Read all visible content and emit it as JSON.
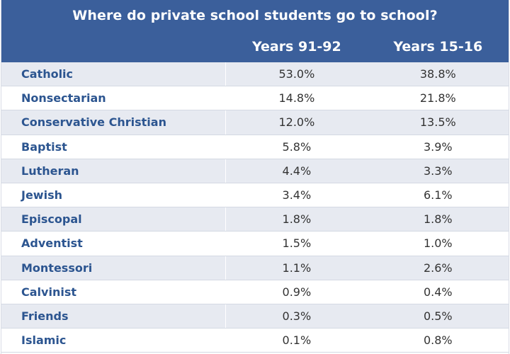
{
  "chart_data": {
    "type": "table",
    "title": "Where do private school students go to school?",
    "columns": [
      "Years 91-92",
      "Years 15-16"
    ],
    "rows": [
      {
        "label": "Catholic",
        "values": [
          "53.0%",
          "38.8%"
        ]
      },
      {
        "label": "Nonsectarian",
        "values": [
          "14.8%",
          "21.8%"
        ]
      },
      {
        "label": "Conservative Christian",
        "values": [
          "12.0%",
          "13.5%"
        ]
      },
      {
        "label": "Baptist",
        "values": [
          "5.8%",
          "3.9%"
        ]
      },
      {
        "label": "Lutheran",
        "values": [
          "4.4%",
          "3.3%"
        ]
      },
      {
        "label": "Jewish",
        "values": [
          "3.4%",
          "6.1%"
        ]
      },
      {
        "label": "Episcopal",
        "values": [
          "1.8%",
          "1.8%"
        ]
      },
      {
        "label": "Adventist",
        "values": [
          "1.5%",
          "1.0%"
        ]
      },
      {
        "label": "Montessori",
        "values": [
          "1.1%",
          "2.6%"
        ]
      },
      {
        "label": "Calvinist",
        "values": [
          "0.9%",
          "0.4%"
        ]
      },
      {
        "label": "Friends",
        "values": [
          "0.3%",
          "0.5%"
        ]
      },
      {
        "label": "Islamic",
        "values": [
          "0.1%",
          "0.8%"
        ]
      }
    ],
    "colors": {
      "header_bg": "#3b5f9b",
      "header_text": "#ffffff",
      "label_text": "#2c5590",
      "value_text": "#333333",
      "shaded_row": "#e7eaf1"
    }
  }
}
